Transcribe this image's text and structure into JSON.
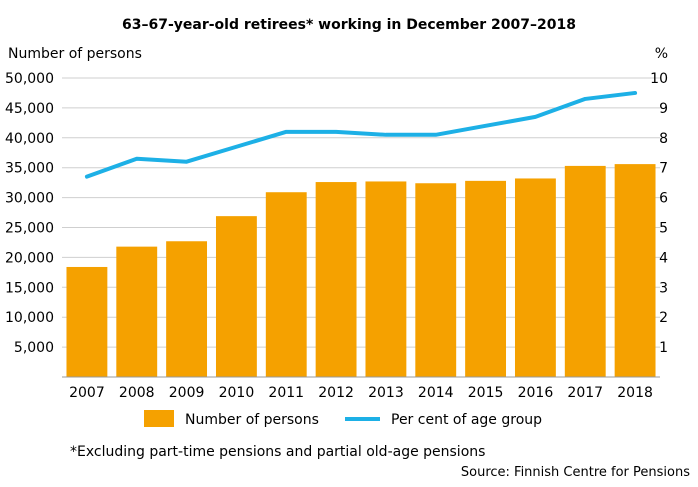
{
  "chart_data": {
    "type": "bar",
    "title": "63–67-year-old retirees* working in December 2007–2018",
    "ylabel": "Number of persons",
    "y2label": "%",
    "categories": [
      "2007",
      "2008",
      "2009",
      "2010",
      "2011",
      "2012",
      "2013",
      "2014",
      "2015",
      "2016",
      "2017",
      "2018"
    ],
    "ylim": [
      0,
      50000
    ],
    "yticks": [
      "5,000",
      "10,000",
      "15,000",
      "20,000",
      "25,000",
      "30,000",
      "35,000",
      "40,000",
      "45,000",
      "50,000"
    ],
    "y2lim": [
      0,
      10
    ],
    "y2ticks": [
      "1",
      "2",
      "3",
      "4",
      "5",
      "6",
      "7",
      "8",
      "9",
      "10"
    ],
    "grid": true,
    "legend_position": "bottom",
    "series": [
      {
        "name": "Number of persons",
        "type": "bar",
        "axis": "left",
        "color": "#F5A100",
        "values": [
          18400,
          21800,
          22700,
          26900,
          30900,
          32600,
          32700,
          32400,
          32800,
          33200,
          35300,
          35600
        ]
      },
      {
        "name": "Per cent of age group",
        "type": "line",
        "axis": "right",
        "color": "#1DB0E6",
        "values": [
          6.7,
          7.3,
          7.2,
          7.7,
          8.2,
          8.2,
          8.1,
          8.1,
          8.4,
          8.7,
          9.3,
          9.5
        ]
      }
    ],
    "footnote": "*Excluding part-time pensions and partial old-age pensions",
    "source": "Source: Finnish Centre for Pensions"
  }
}
